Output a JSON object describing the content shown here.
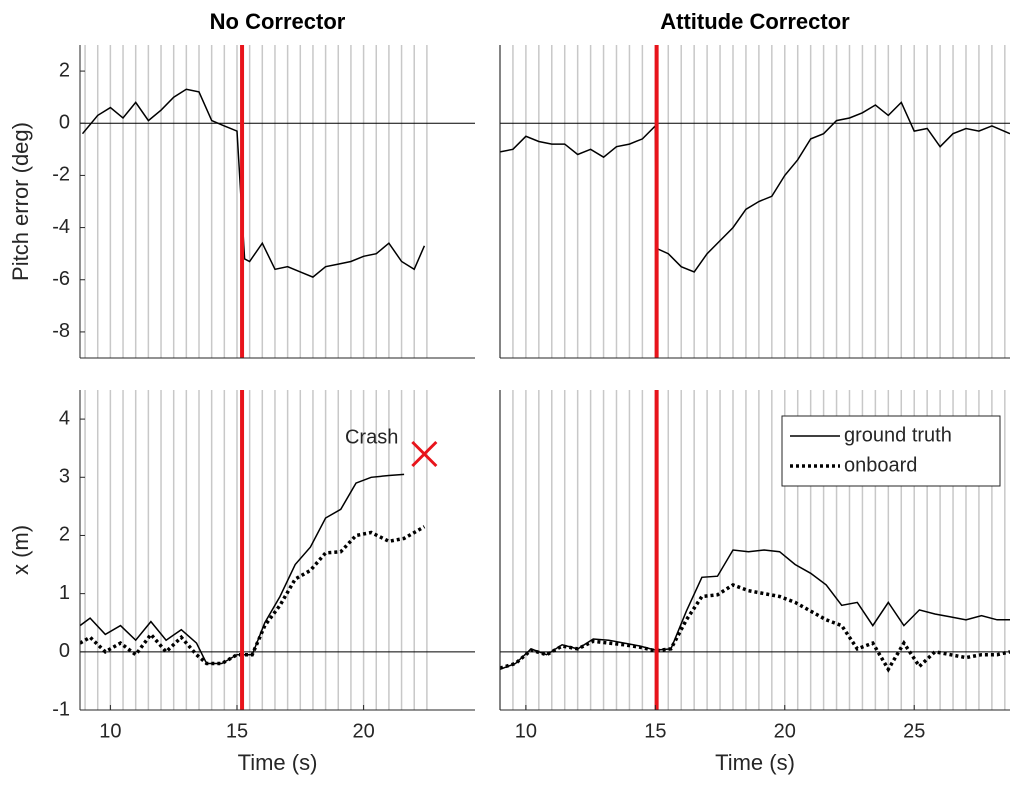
{
  "chart_data": [
    {
      "type": "line",
      "title": "No Corrector",
      "ylabel": "Pitch error (deg)",
      "x": [
        8.9,
        9.5,
        10,
        10.5,
        11,
        11.5,
        12,
        12.5,
        13,
        13.5,
        14,
        14.5,
        15,
        15.3,
        15.5,
        16,
        16.5,
        17,
        17.5,
        18,
        18.5,
        19,
        19.5,
        20,
        20.5,
        21,
        21.5,
        22,
        22.4
      ],
      "values": [
        -0.4,
        0.3,
        0.6,
        0.2,
        0.8,
        0.1,
        0.5,
        1.0,
        1.3,
        1.2,
        0.1,
        -0.1,
        -0.3,
        -5.2,
        -5.3,
        -4.6,
        -5.6,
        -5.5,
        -5.7,
        -5.9,
        -5.5,
        -5.4,
        -5.3,
        -5.1,
        -5.0,
        -4.6,
        -5.3,
        -5.6,
        -4.7
      ],
      "color": "#000000",
      "xlim": [
        8.8,
        24.4
      ],
      "ylim": [
        -9,
        3
      ],
      "yticks": [
        -8,
        -6,
        -4,
        -2,
        0,
        2
      ],
      "marker_lines": [
        9,
        9.5,
        10,
        10.5,
        11,
        11.5,
        12,
        12.5,
        13,
        13.5,
        14,
        14.5,
        15,
        15.5,
        16,
        16.5,
        17,
        17.5,
        18,
        18.5,
        19,
        19.5,
        20,
        20.5,
        21,
        21.5,
        22,
        22.5
      ],
      "marker_line_color": "#c8c8c8",
      "event_x": 15.2,
      "event_color": "#e8141b",
      "zero_line": true
    },
    {
      "type": "line",
      "title": "Attitude Corrector",
      "x": [
        9,
        9.5,
        10,
        10.5,
        11,
        11.5,
        12,
        12.5,
        13,
        13.5,
        14,
        14.5,
        15,
        15.05,
        15.5,
        16,
        16.5,
        17,
        17.5,
        18,
        18.5,
        19,
        19.5,
        20,
        20.5,
        21,
        21.5,
        22,
        22.5,
        23,
        23.5,
        24,
        24.5,
        25,
        25.5,
        26,
        26.5,
        27,
        27.5,
        28,
        28.7
      ],
      "values": [
        -1.1,
        -1.0,
        -0.5,
        -0.7,
        -0.8,
        -0.8,
        -1.2,
        -1.0,
        -1.3,
        -0.9,
        -0.8,
        -0.6,
        -0.1,
        -4.8,
        -5.0,
        -5.5,
        -5.7,
        -5.0,
        -4.5,
        -4.0,
        -3.3,
        -3.0,
        -2.8,
        -2.0,
        -1.4,
        -0.6,
        -0.4,
        0.1,
        0.2,
        0.4,
        0.7,
        0.3,
        0.8,
        -0.3,
        -0.2,
        -0.9,
        -0.4,
        -0.2,
        -0.3,
        -0.1,
        -0.4
      ],
      "color": "#000000",
      "xlim": [
        9,
        28.7
      ],
      "ylim": [
        -9,
        3
      ],
      "marker_lines": [
        9,
        9.5,
        10,
        10.5,
        11,
        11.5,
        12,
        12.5,
        13,
        13.5,
        14,
        14.5,
        15,
        15.5,
        16,
        16.5,
        17,
        17.5,
        18,
        18.5,
        19,
        19.5,
        20,
        20.5,
        21,
        21.5,
        22,
        22.5,
        23,
        23.5,
        24,
        24.5,
        25,
        25.5,
        26,
        26.5,
        27,
        27.5,
        28,
        28.5
      ],
      "marker_line_color": "#c8c8c8",
      "event_x": 15.05,
      "event_color": "#e8141b",
      "zero_line": true
    },
    {
      "type": "line",
      "ylabel": "x (m)",
      "xlabel": "Time (s)",
      "x": [
        8.8,
        9.2,
        9.8,
        10.4,
        11.0,
        11.6,
        12.2,
        12.8,
        13.4,
        13.8,
        14.4,
        15.0,
        15.6,
        16.1,
        16.7,
        17.3,
        17.9,
        18.5,
        19.1,
        19.7,
        20.3,
        21.0,
        21.6,
        22.4
      ],
      "series": [
        {
          "name": "ground truth",
          "color": "#000000",
          "line_style": "solid",
          "values": [
            0.45,
            0.58,
            0.3,
            0.45,
            0.2,
            0.52,
            0.2,
            0.38,
            0.15,
            -0.2,
            -0.2,
            -0.05,
            -0.05,
            0.5,
            0.95,
            1.5,
            1.8,
            2.3,
            2.45,
            2.9,
            3.0,
            3.03,
            3.05,
            null
          ]
        },
        {
          "name": "onboard",
          "color": "#000000",
          "line_style": "dotted",
          "values": [
            0.15,
            0.25,
            0.0,
            0.15,
            -0.05,
            0.3,
            0.0,
            0.25,
            -0.05,
            -0.2,
            -0.2,
            -0.05,
            -0.05,
            0.45,
            0.8,
            1.25,
            1.4,
            1.7,
            1.72,
            2.0,
            2.05,
            1.9,
            1.95,
            2.15
          ]
        }
      ],
      "xlim": [
        8.8,
        24.4
      ],
      "ylim": [
        -1,
        4.5
      ],
      "xticks": [
        10,
        15,
        20
      ],
      "yticks": [
        -1,
        0,
        1,
        2,
        3,
        4
      ],
      "marker_lines": [
        9,
        9.5,
        10,
        10.5,
        11,
        11.5,
        12,
        12.5,
        13,
        13.5,
        14,
        14.5,
        15,
        15.5,
        16,
        16.5,
        17,
        17.5,
        18,
        18.5,
        19,
        19.5,
        20,
        20.5,
        21,
        21.5,
        22,
        22.5
      ],
      "marker_line_color": "#c8c8c8",
      "event_x": 15.2,
      "event_color": "#e8141b",
      "zero_line": true,
      "annotation": "Crash",
      "crash_marker": {
        "x": 22.4,
        "y": 3.4,
        "color": "#e8141b"
      }
    },
    {
      "type": "line",
      "xlabel": "Time (s)",
      "x": [
        9.0,
        9.6,
        10.2,
        10.8,
        11.4,
        12.0,
        12.6,
        13.2,
        13.8,
        14.4,
        15.0,
        15.6,
        16.2,
        16.8,
        17.4,
        18.0,
        18.6,
        19.2,
        19.8,
        20.4,
        21.0,
        21.6,
        22.2,
        22.8,
        23.4,
        24.0,
        24.6,
        25.2,
        25.8,
        26.4,
        27.0,
        27.6,
        28.2,
        28.7
      ],
      "series": [
        {
          "name": "ground truth",
          "color": "#000000",
          "line_style": "solid",
          "values": [
            -0.3,
            -0.2,
            0.05,
            -0.05,
            0.12,
            0.05,
            0.22,
            0.2,
            0.15,
            0.1,
            0.03,
            0.05,
            0.7,
            1.28,
            1.3,
            1.75,
            1.72,
            1.75,
            1.72,
            1.5,
            1.35,
            1.15,
            0.8,
            0.85,
            0.45,
            0.85,
            0.45,
            0.72,
            0.65,
            0.6,
            0.55,
            0.62,
            0.55,
            0.55
          ]
        },
        {
          "name": "onboard",
          "color": "#000000",
          "line_style": "dotted",
          "values": [
            -0.28,
            -0.2,
            0.03,
            -0.05,
            0.1,
            0.05,
            0.18,
            0.15,
            0.12,
            0.08,
            0.02,
            0.05,
            0.55,
            0.95,
            0.98,
            1.15,
            1.05,
            1.0,
            0.95,
            0.85,
            0.7,
            0.55,
            0.45,
            0.05,
            0.15,
            -0.3,
            0.15,
            -0.25,
            0.0,
            -0.05,
            -0.1,
            -0.05,
            -0.05,
            0.0
          ]
        }
      ],
      "xlim": [
        9,
        28.7
      ],
      "ylim": [
        -1,
        4.5
      ],
      "xticks": [
        10,
        15,
        20,
        25
      ],
      "marker_lines": [
        9,
        9.5,
        10,
        10.5,
        11,
        11.5,
        12,
        12.5,
        13,
        13.5,
        14,
        14.5,
        15,
        15.5,
        16,
        16.5,
        17,
        17.5,
        18,
        18.5,
        19,
        19.5,
        20,
        20.5,
        21,
        21.5,
        22,
        22.5,
        23,
        23.5,
        24,
        24.5,
        25,
        25.5,
        26,
        26.5,
        27,
        27.5,
        28,
        28.5
      ],
      "marker_line_color": "#c8c8c8",
      "event_x": 15.05,
      "event_color": "#e8141b",
      "zero_line": true,
      "legend": "upper right"
    }
  ]
}
